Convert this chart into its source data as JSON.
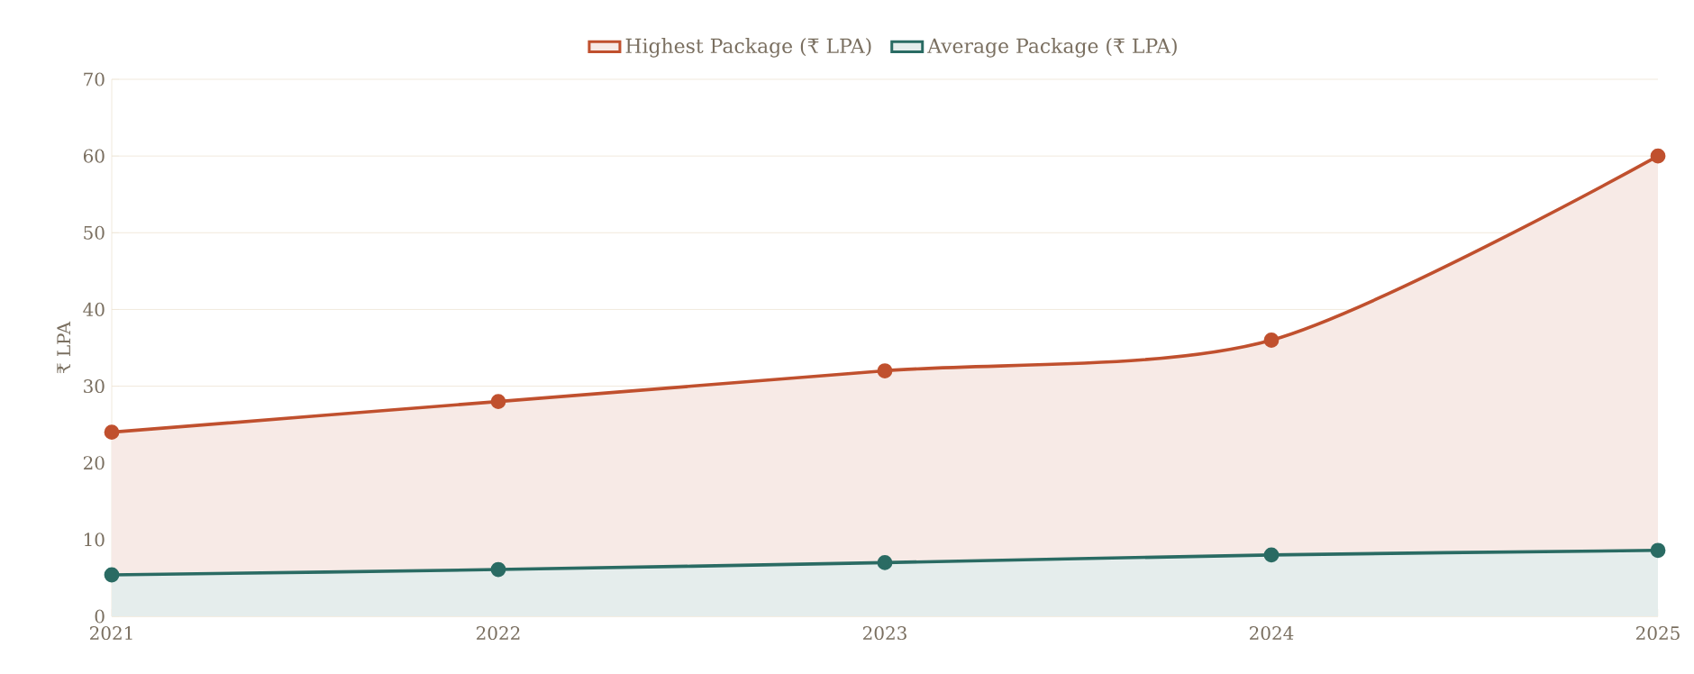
{
  "chart_data": {
    "type": "area",
    "ylabel": "₹ LPA",
    "x": [
      2021,
      2022,
      2023,
      2024,
      2025
    ],
    "series": [
      {
        "name": "Highest Package (₹ LPA)",
        "color": "#c0502e",
        "values": [
          24,
          28,
          32,
          36,
          60
        ]
      },
      {
        "name": "Average Package (₹ LPA)",
        "color": "#2a6b63",
        "values": [
          5.4,
          6.1,
          7,
          8,
          8.6
        ]
      }
    ],
    "xlim": [
      2021,
      2025
    ],
    "xticks": [
      2021,
      2022,
      2023,
      2024,
      2025
    ],
    "ylim": [
      0,
      70
    ],
    "yticks": [
      0,
      10,
      20,
      30,
      40,
      50,
      60,
      70
    ],
    "grid": "y",
    "legend": "top",
    "marker": "circle"
  }
}
